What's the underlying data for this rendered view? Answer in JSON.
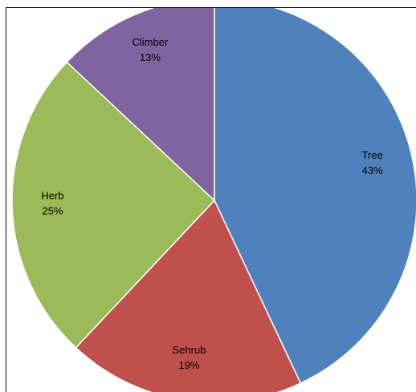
{
  "chart_data": {
    "type": "pie",
    "slices": [
      {
        "name": "Tree",
        "value": 43,
        "pct_label": "43%",
        "color": "#4F81BD"
      },
      {
        "name": "Sehrub",
        "value": 19,
        "pct_label": "19%",
        "color": "#C0504D"
      },
      {
        "name": "Herb",
        "value": 25,
        "pct_label": "25%",
        "color": "#9BBB59"
      },
      {
        "name": "Climber",
        "value": 13,
        "pct_label": "13%",
        "color": "#8064A2"
      }
    ],
    "start": "12 o'clock",
    "direction": "clockwise",
    "data_labels": "category name and percentage"
  }
}
